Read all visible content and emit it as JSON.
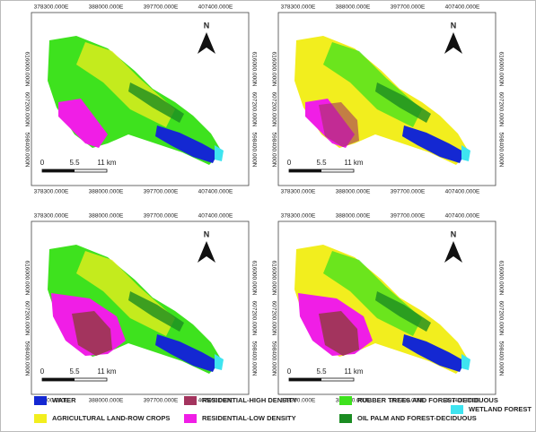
{
  "panels": [
    {
      "top_labels": [
        "378300.000E",
        "388000.000E",
        "397700.000E",
        "407400.000E"
      ],
      "bottom_labels": [
        "378300.000E",
        "388000.000E",
        "397700.000E",
        "407400.000E"
      ],
      "left_labels": [
        "616000.000N",
        "607200.000N",
        "598400.000N"
      ],
      "right_labels": [
        "616000.000N",
        "607200.000N",
        "598400.000N"
      ],
      "scale_labels": [
        "0",
        "5.5",
        "11 km"
      ],
      "north": "N"
    },
    {
      "top_labels": [
        "378300.000E",
        "388000.000E",
        "397700.000E",
        "407400.000E"
      ],
      "bottom_labels": [
        "378300.000E",
        "388000.000E",
        "397700.000E",
        "407400.000E"
      ],
      "left_labels": [
        "616000.000N",
        "607200.000N",
        "598400.000N"
      ],
      "right_labels": [
        "616000.000N",
        "607200.000N",
        "598400.000N"
      ],
      "scale_labels": [
        "0",
        "5.5",
        "11 km"
      ],
      "north": "N"
    },
    {
      "top_labels": [
        "378300.000E",
        "388000.000E",
        "397700.000E",
        "407400.000E"
      ],
      "bottom_labels": [
        "378300.000E",
        "388000.000E",
        "397700.000E",
        "407400.000E"
      ],
      "left_labels": [
        "616000.000N",
        "607200.000N",
        "598400.000N"
      ],
      "right_labels": [
        "616000.000N",
        "607200.000N",
        "598400.000N"
      ],
      "scale_labels": [
        "0",
        "5.5",
        "11 km"
      ],
      "north": "N"
    },
    {
      "top_labels": [
        "378300.000E",
        "388000.000E",
        "397700.000E",
        "407400.000E"
      ],
      "bottom_labels": [
        "378300.000E",
        "388000.000E",
        "397700.000E",
        "407400.000E"
      ],
      "left_labels": [
        "616000.000N",
        "607200.000N",
        "598400.000N"
      ],
      "right_labels": [
        "616000.000N",
        "607200.000N",
        "598400.000N"
      ],
      "scale_labels": [
        "0",
        "5.5",
        "11 km"
      ],
      "north": "N"
    }
  ],
  "legend": [
    {
      "label": "WATER",
      "color": "#1428d2"
    },
    {
      "label": "AGRICULTURAL LAND-ROW CROPS",
      "color": "#f2ee1e"
    },
    {
      "label": "RESIDENTIAL-HIGH DENSITY",
      "color": "#a3345e"
    },
    {
      "label": "RESIDENTIAL-LOW DENSITY",
      "color": "#f01ee6"
    },
    {
      "label": "RUBBER TREES AND FOREST-DECIDUOUS",
      "color": "#3ee21e"
    },
    {
      "label": "OIL PALM AND FOREST-DECIDUOUS",
      "color": "#1b8c22"
    },
    {
      "label": "WETLAND FOREST",
      "color": "#3ee4f0"
    }
  ]
}
